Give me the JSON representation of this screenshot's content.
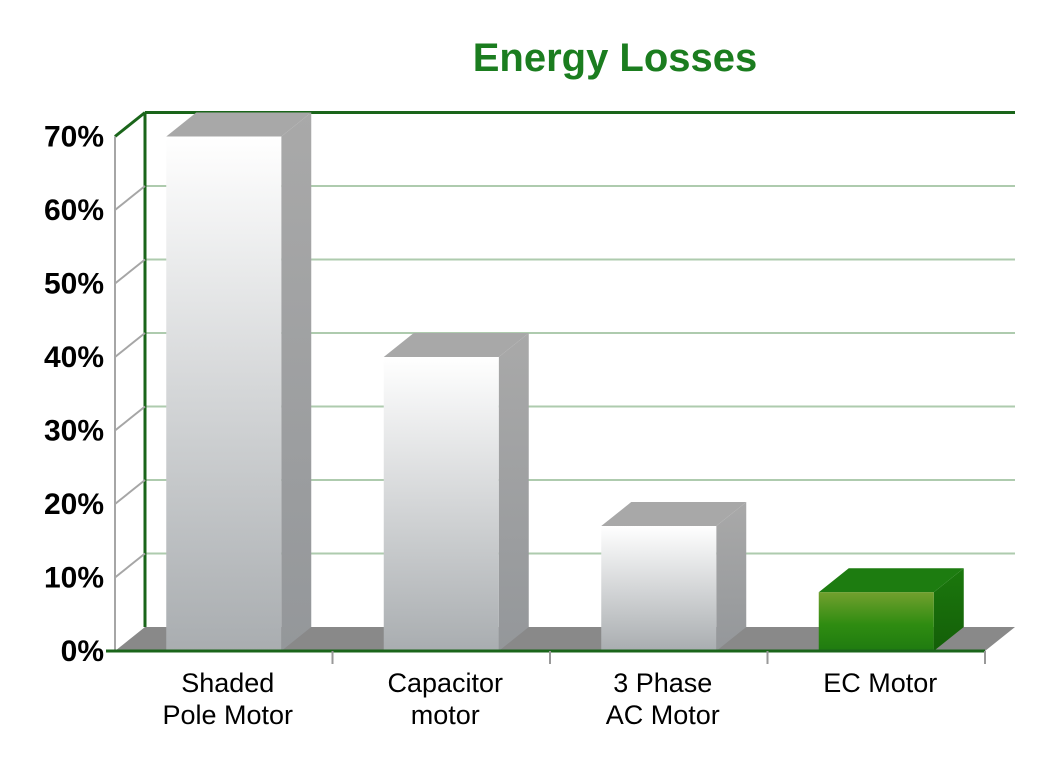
{
  "chart_data": {
    "type": "bar",
    "style": "3d-column",
    "title": "Energy Losses",
    "categories": [
      "Shaded Pole Motor",
      "Capacitor motor",
      "3 Phase AC Motor",
      "EC Motor"
    ],
    "category_label_lines": [
      [
        "Shaded",
        "Pole Motor"
      ],
      [
        "Capacitor",
        "motor"
      ],
      [
        "3 Phase",
        "AC Motor"
      ],
      [
        "EC Motor"
      ]
    ],
    "values": [
      70,
      40,
      17,
      8
    ],
    "value_unit": "%",
    "ylim": [
      0,
      70
    ],
    "ytick_step": 10,
    "ytick_labels": [
      "0%",
      "10%",
      "20%",
      "30%",
      "40%",
      "50%",
      "60%",
      "70%"
    ],
    "grid": true,
    "legend": "none",
    "bar_palette": [
      "silver",
      "silver",
      "silver",
      "green"
    ],
    "colors": {
      "title": "#1b7d1f",
      "frame": "#1a651a",
      "gridline": "#aecbae",
      "axis": "#a6a6a6",
      "tick": "#999999",
      "floor": "#898989",
      "label_text": "#000000",
      "silver_front_top": "#ffffff",
      "silver_front_bottom": "#a9adb0",
      "silver_top": "#a8a8a8",
      "silver_side_top": "#a9a9a9",
      "silver_side_bottom": "#94979a",
      "green_front_top": "#72a02e",
      "green_front_mid": "#2f8c11",
      "green_front_bottom": "#1f7b10",
      "green_top": "#1d7c10",
      "green_side_top": "#1b780d",
      "green_side_bottom": "#145f08"
    }
  }
}
